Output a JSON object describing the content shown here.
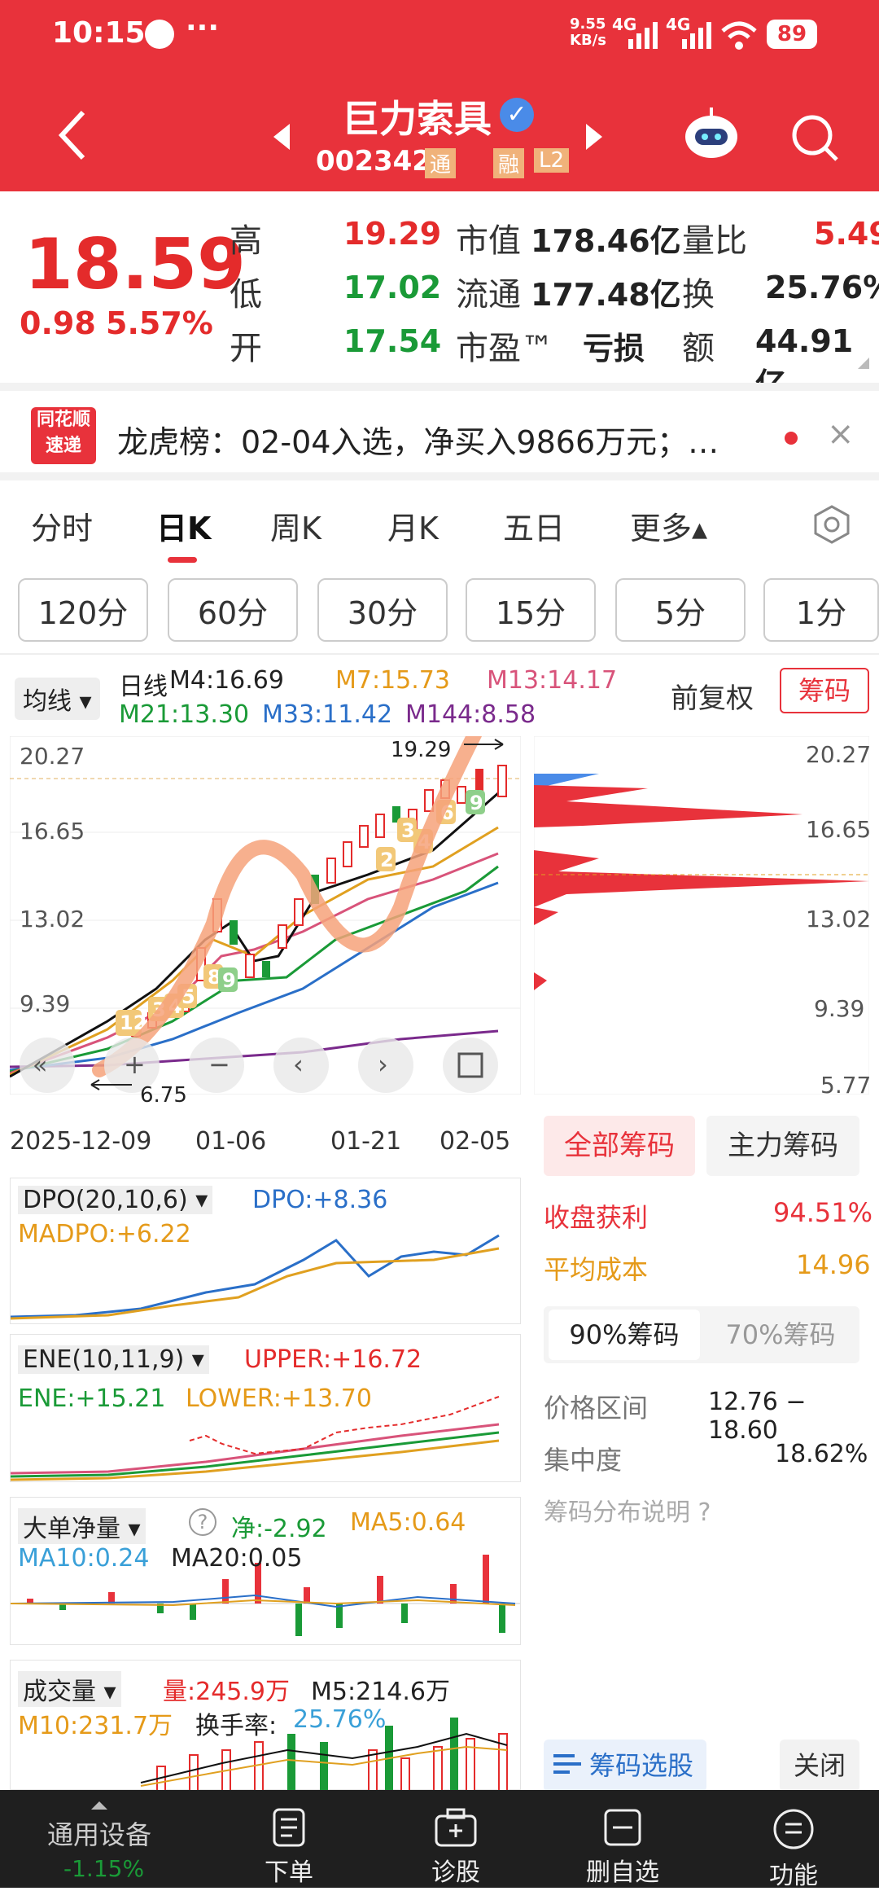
{
  "status": {
    "time": "10:15",
    "dots": "···",
    "net": "9.55\nKB/s",
    "sig1": "4G",
    "sig2": "4G",
    "battery": "89"
  },
  "header": {
    "name": "巨力索具",
    "code": "002342",
    "badge1": "通",
    "badge2": "融",
    "badge3": "L2"
  },
  "quote": {
    "price": "18.59",
    "change": "0.98",
    "pct": "5.57%",
    "rows": [
      {
        "l1": "高",
        "v1": "19.29",
        "l2": "市值",
        "v2": "178.46亿",
        "l3": "量比",
        "v3": "5.49"
      },
      {
        "l1": "低",
        "v1": "17.02",
        "l2": "流通",
        "v2": "177.48亿",
        "l3": "换",
        "v3": "25.76%"
      },
      {
        "l1": "开",
        "v1": "17.54",
        "l2": "市盈™",
        "v2": "亏损",
        "l3": "额",
        "v3": "44.91亿"
      }
    ]
  },
  "news": {
    "logo1": "同花顺",
    "logo2": "速递",
    "text": "龙虎榜：02-04入选，净买入9866万元；…"
  },
  "tabs": [
    "分时",
    "日K",
    "周K",
    "月K",
    "五日",
    "更多▴"
  ],
  "chips": [
    "120分",
    "60分",
    "30分",
    "15分",
    "5分",
    "1分"
  ],
  "ma": {
    "select": "均线 ▾",
    "period": "日线",
    "m4": "M4:16.69",
    "m7": "M7:15.73",
    "m13": "M13:14.17",
    "m21": "M21:13.30",
    "m33": "M33:11.42",
    "m144": "M144:8.58",
    "fq": "前复权",
    "chouma": "筹码"
  },
  "kline": {
    "y_labels": [
      "20.27",
      "16.65",
      "13.02",
      "9.39",
      "5.77"
    ],
    "x_labels": [
      "2025-12-09",
      "01-06",
      "01-21",
      "02-05"
    ],
    "high_note": "19.29",
    "low_note": "6.75",
    "bubbles": [
      "12",
      "3",
      "4",
      "5",
      "6",
      "8",
      "9",
      "1",
      "2",
      "3",
      "4",
      "5",
      "6",
      "8",
      "9"
    ]
  },
  "dpo": {
    "name": "DPO(20,10,6) ▾",
    "dpo": "DPO:+8.36",
    "madpo": "MADPO:+6.22"
  },
  "ene": {
    "name": "ENE(10,11,9) ▾",
    "upper": "UPPER:+16.72",
    "ene": "ENE:+15.21",
    "lower": "LOWER:+13.70"
  },
  "bigorder": {
    "name": "大单净量 ▾",
    "q": "?",
    "net": "净:-2.92",
    "ma5": "MA5:0.64",
    "ma10": "MA10:0.24",
    "ma20": "MA20:0.05"
  },
  "volume": {
    "name": "成交量 ▾",
    "vol": "量:245.9万",
    "m5": "M5:214.6万",
    "m10": "M10:231.7万",
    "turn_label": "换手率:",
    "turn": "25.76%"
  },
  "chips_panel": {
    "tab1": "全部筹码",
    "tab2": "主力筹码",
    "profit_label": "收盘获利",
    "profit": "94.51%",
    "avg_label": "平均成本",
    "avg": "14.96",
    "sub1": "90%筹码",
    "sub2": "70%筹码",
    "range_label": "价格区间",
    "range": "12.76 − 18.60",
    "conc_label": "集中度",
    "conc": "18.62%",
    "explain": "筹码分布说明 ?",
    "select": "筹码选股",
    "close": "关闭"
  },
  "bottom": {
    "left_label": "通用设备",
    "left_val": "-1.15%",
    "items": [
      "下单",
      "诊股",
      "删自选",
      "功能"
    ]
  },
  "colors": {
    "red": "#e8323b",
    "green": "#1a9a37",
    "blue": "#2a6fc8"
  }
}
